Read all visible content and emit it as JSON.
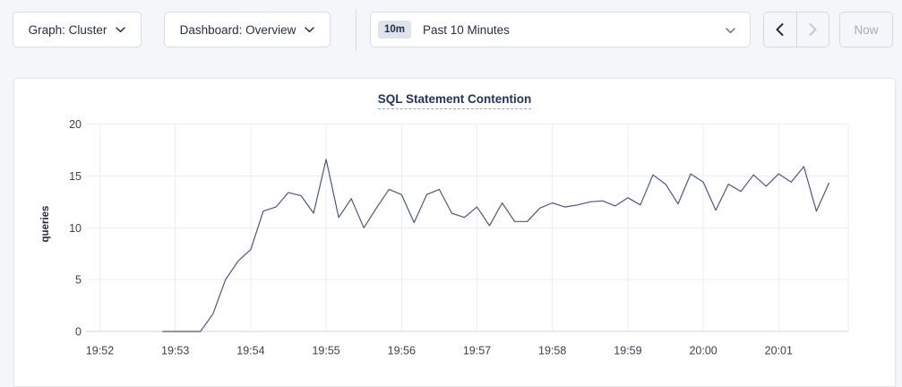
{
  "toolbar": {
    "graph_dropdown": {
      "label": "Graph: Cluster"
    },
    "dashboard_dropdown": {
      "label": "Dashboard: Overview"
    },
    "time_picker": {
      "badge": "10m",
      "label": "Past 10 Minutes"
    },
    "now_button": {
      "label": "Now",
      "enabled": false
    },
    "prev_enabled": true,
    "next_enabled": false
  },
  "colors": {
    "page_bg": "#f4f6fa",
    "card_bg": "#ffffff",
    "border": "#d8dce5",
    "title_text": "#25335a",
    "badge_bg": "#dee3ee",
    "disabled_text": "#a6adb9",
    "line": "#4a5878",
    "gridline": "#ededf1",
    "axis_line": "#d2d4d9"
  },
  "chart_data": {
    "type": "line",
    "title": "SQL Statement Contention",
    "xlabel": "",
    "ylabel": "queries",
    "ylim": [
      0,
      20
    ],
    "yticks": [
      0,
      5,
      10,
      15,
      20
    ],
    "xticks": [
      "19:52",
      "19:53",
      "19:54",
      "19:55",
      "19:56",
      "19:57",
      "19:58",
      "19:59",
      "20:00",
      "20:01"
    ],
    "grid": true,
    "legend_position": "none",
    "line_color": "#4a5878",
    "series": [
      {
        "name": "queries",
        "points": [
          [
            "19:52:50",
            0
          ],
          [
            "19:53:00",
            0
          ],
          [
            "19:53:10",
            0
          ],
          [
            "19:53:20",
            0
          ],
          [
            "19:53:30",
            1.7
          ],
          [
            "19:53:40",
            5.0
          ],
          [
            "19:53:50",
            6.8
          ],
          [
            "19:54:00",
            7.9
          ],
          [
            "19:54:10",
            11.6
          ],
          [
            "19:54:20",
            12.0
          ],
          [
            "19:54:30",
            13.4
          ],
          [
            "19:54:40",
            13.1
          ],
          [
            "19:54:50",
            11.4
          ],
          [
            "19:55:00",
            16.6
          ],
          [
            "19:55:10",
            11.0
          ],
          [
            "19:55:20",
            12.8
          ],
          [
            "19:55:30",
            10.0
          ],
          [
            "19:55:40",
            11.9
          ],
          [
            "19:55:50",
            13.7
          ],
          [
            "19:56:00",
            13.2
          ],
          [
            "19:56:10",
            10.5
          ],
          [
            "19:56:20",
            13.2
          ],
          [
            "19:56:30",
            13.7
          ],
          [
            "19:56:40",
            11.4
          ],
          [
            "19:56:50",
            11.0
          ],
          [
            "19:57:00",
            12.0
          ],
          [
            "19:57:10",
            10.2
          ],
          [
            "19:57:20",
            12.4
          ],
          [
            "19:57:30",
            10.6
          ],
          [
            "19:57:40",
            10.6
          ],
          [
            "19:57:50",
            11.9
          ],
          [
            "19:58:00",
            12.4
          ],
          [
            "19:58:10",
            12.0
          ],
          [
            "19:58:20",
            12.2
          ],
          [
            "19:58:30",
            12.5
          ],
          [
            "19:58:40",
            12.6
          ],
          [
            "19:58:50",
            12.1
          ],
          [
            "19:59:00",
            12.9
          ],
          [
            "19:59:10",
            12.2
          ],
          [
            "19:59:20",
            15.1
          ],
          [
            "19:59:30",
            14.2
          ],
          [
            "19:59:40",
            12.3
          ],
          [
            "19:59:50",
            15.2
          ],
          [
            "20:00:00",
            14.4
          ],
          [
            "20:00:10",
            11.7
          ],
          [
            "20:00:20",
            14.2
          ],
          [
            "20:00:30",
            13.5
          ],
          [
            "20:00:40",
            15.1
          ],
          [
            "20:00:50",
            14.0
          ],
          [
            "20:01:00",
            15.2
          ],
          [
            "20:01:10",
            14.4
          ],
          [
            "20:01:20",
            15.9
          ],
          [
            "20:01:30",
            11.6
          ],
          [
            "20:01:40",
            14.3
          ]
        ]
      }
    ]
  }
}
